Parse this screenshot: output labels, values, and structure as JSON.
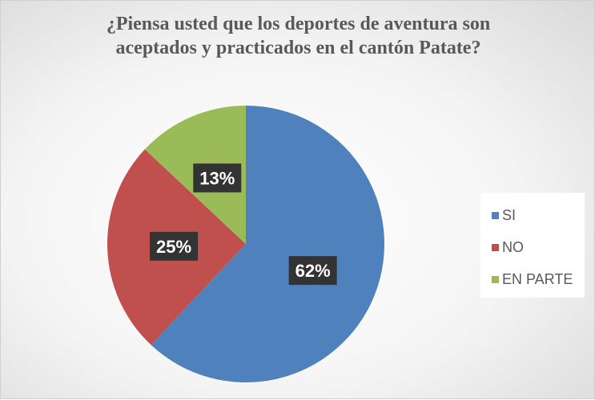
{
  "chart_data": {
    "type": "pie",
    "title": [
      "¿Piensa usted que los deportes de aventura son",
      "aceptados y practicados en el cantón Patate?"
    ],
    "categories": [
      "SI",
      "NO",
      "EN PARTE"
    ],
    "values": [
      62,
      25,
      13
    ],
    "labels": [
      "62%",
      "25%",
      "13%"
    ],
    "colors": [
      "#4f81bd",
      "#c0504d",
      "#9bbb59"
    ],
    "legend_position": "right",
    "start": "top, clockwise"
  }
}
